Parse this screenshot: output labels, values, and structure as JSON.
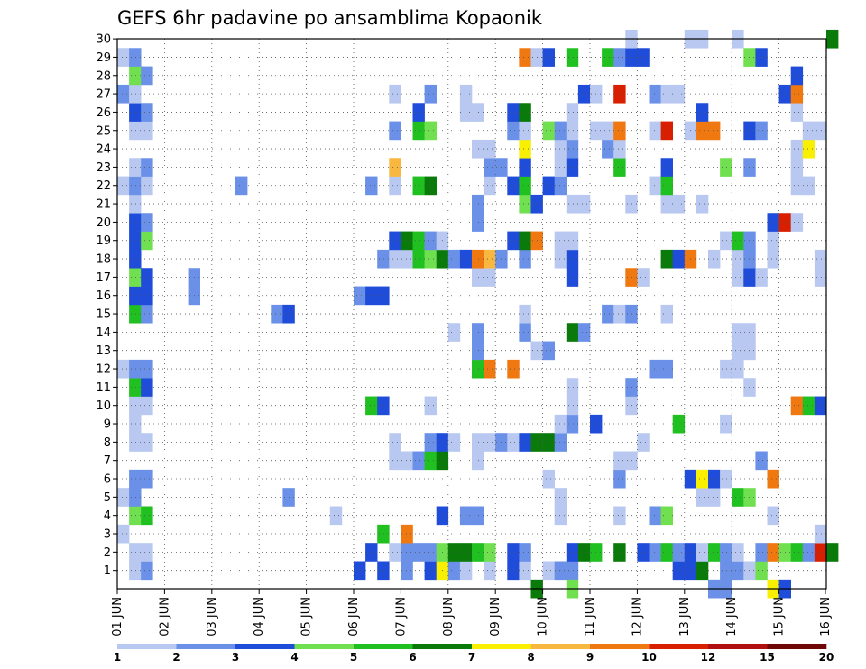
{
  "chart_data": {
    "type": "heatmap",
    "title": "GEFS 6hr padavine po ansamblima Kopaonik",
    "xlabel": "",
    "ylabel": "",
    "x_tick_labels": [
      "01 JUN",
      "02 JUN",
      "03 JUN",
      "04 JUN",
      "05 JUN",
      "06 JUN",
      "07 JUN",
      "08 JUN",
      "09 JUN",
      "10 JUN",
      "11 JUN",
      "12 JUN",
      "13 JUN",
      "14 JUN",
      "15 JUN",
      "16 JUN"
    ],
    "y_tick_labels": [
      "1",
      "2",
      "3",
      "4",
      "5",
      "6",
      "7",
      "8",
      "9",
      "10",
      "11",
      "12",
      "13",
      "14",
      "15",
      "16",
      "17",
      "18",
      "19",
      "20",
      "21",
      "22",
      "23",
      "24",
      "25",
      "26",
      "27",
      "28",
      "29",
      "30"
    ],
    "x_range_steps": [
      0,
      60
    ],
    "y_range_members": [
      0,
      30
    ],
    "grid": "dotted",
    "legend": "bottom colorbar",
    "colorbar": {
      "labels": [
        "1",
        "2",
        "3",
        "4",
        "5",
        "6",
        "7",
        "8",
        "9",
        "10",
        "12",
        "15",
        "20"
      ],
      "colors": [
        "#b8c8f0",
        "#6a90e8",
        "#1f4cd8",
        "#70e050",
        "#20c020",
        "#0a7a0a",
        "#f8f000",
        "#f8b840",
        "#f07810",
        "#d82000",
        "#b01010",
        "#700808"
      ]
    },
    "cells": [
      [
        1,
        1,
        1
      ],
      [
        1,
        2,
        2
      ],
      [
        1,
        20,
        3
      ],
      [
        1,
        22,
        3
      ],
      [
        1,
        24,
        2
      ],
      [
        1,
        26,
        3
      ],
      [
        1,
        27,
        7
      ],
      [
        1,
        28,
        2
      ],
      [
        1,
        29,
        1
      ],
      [
        1,
        31,
        1
      ],
      [
        1,
        33,
        3
      ],
      [
        1,
        34,
        1
      ],
      [
        1,
        36,
        1
      ],
      [
        1,
        37,
        2
      ],
      [
        1,
        38,
        2
      ],
      [
        1,
        47,
        3
      ],
      [
        1,
        48,
        3
      ],
      [
        1,
        49,
        6
      ],
      [
        1,
        51,
        2
      ],
      [
        1,
        52,
        2
      ],
      [
        1,
        53,
        1
      ],
      [
        1,
        54,
        4
      ],
      [
        2,
        1,
        1
      ],
      [
        2,
        2,
        1
      ],
      [
        2,
        21,
        3
      ],
      [
        2,
        23,
        1
      ],
      [
        2,
        24,
        2
      ],
      [
        2,
        25,
        2
      ],
      [
        2,
        26,
        2
      ],
      [
        2,
        27,
        4
      ],
      [
        2,
        28,
        6
      ],
      [
        2,
        29,
        6
      ],
      [
        2,
        30,
        5
      ],
      [
        2,
        31,
        4
      ],
      [
        2,
        33,
        3
      ],
      [
        2,
        34,
        2
      ],
      [
        2,
        38,
        3
      ],
      [
        2,
        39,
        6
      ],
      [
        2,
        40,
        5
      ],
      [
        2,
        42,
        6
      ],
      [
        2,
        44,
        3
      ],
      [
        2,
        45,
        2
      ],
      [
        2,
        46,
        5
      ],
      [
        2,
        47,
        2
      ],
      [
        2,
        48,
        3
      ],
      [
        2,
        49,
        1
      ],
      [
        2,
        50,
        5
      ],
      [
        2,
        51,
        2
      ],
      [
        2,
        52,
        1
      ],
      [
        2,
        54,
        2
      ],
      [
        2,
        55,
        9
      ],
      [
        2,
        56,
        4
      ],
      [
        2,
        57,
        5
      ],
      [
        2,
        58,
        2
      ],
      [
        2,
        59,
        10
      ],
      [
        2,
        60,
        6
      ],
      [
        3,
        0,
        1
      ],
      [
        3,
        22,
        5
      ],
      [
        3,
        24,
        9
      ],
      [
        3,
        59,
        1
      ],
      [
        4,
        1,
        4
      ],
      [
        4,
        2,
        5
      ],
      [
        4,
        18,
        1
      ],
      [
        4,
        27,
        3
      ],
      [
        4,
        29,
        2
      ],
      [
        4,
        30,
        2
      ],
      [
        4,
        37,
        1
      ],
      [
        4,
        42,
        1
      ],
      [
        4,
        45,
        2
      ],
      [
        4,
        46,
        4
      ],
      [
        4,
        55,
        1
      ],
      [
        5,
        0,
        1
      ],
      [
        5,
        1,
        2
      ],
      [
        5,
        14,
        2
      ],
      [
        5,
        37,
        1
      ],
      [
        5,
        49,
        1
      ],
      [
        5,
        50,
        1
      ],
      [
        5,
        52,
        5
      ],
      [
        5,
        53,
        4
      ],
      [
        6,
        1,
        2
      ],
      [
        6,
        2,
        2
      ],
      [
        6,
        36,
        1
      ],
      [
        6,
        42,
        2
      ],
      [
        6,
        48,
        3
      ],
      [
        6,
        49,
        7
      ],
      [
        6,
        50,
        3
      ],
      [
        6,
        51,
        1
      ],
      [
        6,
        55,
        9
      ],
      [
        7,
        23,
        1
      ],
      [
        7,
        24,
        1
      ],
      [
        7,
        25,
        2
      ],
      [
        7,
        26,
        5
      ],
      [
        7,
        27,
        6
      ],
      [
        7,
        30,
        1
      ],
      [
        7,
        42,
        1
      ],
      [
        7,
        43,
        1
      ],
      [
        7,
        54,
        2
      ],
      [
        8,
        1,
        1
      ],
      [
        8,
        2,
        1
      ],
      [
        8,
        23,
        1
      ],
      [
        8,
        26,
        2
      ],
      [
        8,
        27,
        3
      ],
      [
        8,
        28,
        1
      ],
      [
        8,
        30,
        1
      ],
      [
        8,
        31,
        1
      ],
      [
        8,
        32,
        2
      ],
      [
        8,
        33,
        1
      ],
      [
        8,
        34,
        3
      ],
      [
        8,
        35,
        6
      ],
      [
        8,
        36,
        6
      ],
      [
        8,
        37,
        2
      ],
      [
        8,
        44,
        1
      ],
      [
        9,
        1,
        1
      ],
      [
        9,
        37,
        1
      ],
      [
        9,
        38,
        2
      ],
      [
        9,
        40,
        3
      ],
      [
        9,
        47,
        5
      ],
      [
        9,
        51,
        1
      ],
      [
        10,
        1,
        1
      ],
      [
        10,
        2,
        1
      ],
      [
        10,
        21,
        5
      ],
      [
        10,
        22,
        3
      ],
      [
        10,
        26,
        1
      ],
      [
        10,
        38,
        1
      ],
      [
        10,
        43,
        1
      ],
      [
        10,
        57,
        9
      ],
      [
        10,
        58,
        5
      ],
      [
        10,
        59,
        3
      ],
      [
        11,
        1,
        5
      ],
      [
        11,
        2,
        3
      ],
      [
        11,
        38,
        1
      ],
      [
        11,
        43,
        2
      ],
      [
        11,
        53,
        1
      ],
      [
        12,
        0,
        1
      ],
      [
        12,
        1,
        2
      ],
      [
        12,
        2,
        2
      ],
      [
        12,
        30,
        5
      ],
      [
        12,
        31,
        9
      ],
      [
        12,
        33,
        9
      ],
      [
        12,
        45,
        2
      ],
      [
        12,
        46,
        2
      ],
      [
        12,
        51,
        1
      ],
      [
        12,
        52,
        1
      ],
      [
        13,
        30,
        2
      ],
      [
        13,
        35,
        1
      ],
      [
        13,
        36,
        2
      ],
      [
        13,
        52,
        1
      ],
      [
        13,
        53,
        1
      ],
      [
        14,
        28,
        1
      ],
      [
        14,
        30,
        2
      ],
      [
        14,
        34,
        2
      ],
      [
        14,
        38,
        6
      ],
      [
        14,
        39,
        2
      ],
      [
        14,
        52,
        1
      ],
      [
        14,
        53,
        1
      ],
      [
        15,
        1,
        5
      ],
      [
        15,
        2,
        2
      ],
      [
        15,
        13,
        2
      ],
      [
        15,
        14,
        3
      ],
      [
        15,
        34,
        1
      ],
      [
        15,
        41,
        2
      ],
      [
        15,
        42,
        1
      ],
      [
        15,
        43,
        2
      ],
      [
        15,
        46,
        1
      ],
      [
        16,
        1,
        3
      ],
      [
        16,
        2,
        3
      ],
      [
        16,
        6,
        2
      ],
      [
        16,
        20,
        2
      ],
      [
        16,
        21,
        3
      ],
      [
        16,
        22,
        3
      ],
      [
        17,
        1,
        4
      ],
      [
        17,
        2,
        3
      ],
      [
        17,
        6,
        2
      ],
      [
        17,
        30,
        1
      ],
      [
        17,
        31,
        1
      ],
      [
        17,
        38,
        3
      ],
      [
        17,
        43,
        9
      ],
      [
        17,
        44,
        1
      ],
      [
        17,
        52,
        1
      ],
      [
        17,
        53,
        3
      ],
      [
        17,
        54,
        1
      ],
      [
        17,
        59,
        1
      ],
      [
        18,
        1,
        3
      ],
      [
        18,
        22,
        2
      ],
      [
        18,
        23,
        1
      ],
      [
        18,
        24,
        1
      ],
      [
        18,
        25,
        5
      ],
      [
        18,
        26,
        4
      ],
      [
        18,
        27,
        6
      ],
      [
        18,
        28,
        2
      ],
      [
        18,
        29,
        3
      ],
      [
        18,
        30,
        9
      ],
      [
        18,
        31,
        8
      ],
      [
        18,
        32,
        2
      ],
      [
        18,
        34,
        2
      ],
      [
        18,
        37,
        1
      ],
      [
        18,
        38,
        3
      ],
      [
        18,
        46,
        6
      ],
      [
        18,
        47,
        3
      ],
      [
        18,
        48,
        9
      ],
      [
        18,
        50,
        1
      ],
      [
        18,
        52,
        1
      ],
      [
        18,
        53,
        2
      ],
      [
        18,
        55,
        1
      ],
      [
        18,
        59,
        1
      ],
      [
        19,
        1,
        3
      ],
      [
        19,
        2,
        4
      ],
      [
        19,
        23,
        3
      ],
      [
        19,
        24,
        6
      ],
      [
        19,
        25,
        5
      ],
      [
        19,
        26,
        2
      ],
      [
        19,
        27,
        1
      ],
      [
        19,
        33,
        3
      ],
      [
        19,
        34,
        6
      ],
      [
        19,
        35,
        9
      ],
      [
        19,
        37,
        1
      ],
      [
        19,
        38,
        1
      ],
      [
        19,
        51,
        1
      ],
      [
        19,
        52,
        5
      ],
      [
        19,
        53,
        2
      ],
      [
        19,
        55,
        1
      ],
      [
        20,
        1,
        3
      ],
      [
        20,
        2,
        2
      ],
      [
        20,
        30,
        2
      ],
      [
        20,
        55,
        3
      ],
      [
        20,
        56,
        10
      ],
      [
        20,
        57,
        1
      ],
      [
        21,
        1,
        1
      ],
      [
        21,
        30,
        2
      ],
      [
        21,
        34,
        4
      ],
      [
        21,
        35,
        3
      ],
      [
        21,
        38,
        1
      ],
      [
        21,
        39,
        1
      ],
      [
        21,
        43,
        1
      ],
      [
        21,
        46,
        1
      ],
      [
        21,
        47,
        1
      ],
      [
        21,
        49,
        1
      ],
      [
        22,
        0,
        1
      ],
      [
        22,
        1,
        2
      ],
      [
        22,
        2,
        1
      ],
      [
        22,
        10,
        2
      ],
      [
        22,
        21,
        2
      ],
      [
        22,
        23,
        1
      ],
      [
        22,
        25,
        5
      ],
      [
        22,
        26,
        6
      ],
      [
        22,
        31,
        1
      ],
      [
        22,
        33,
        3
      ],
      [
        22,
        34,
        5
      ],
      [
        22,
        36,
        3
      ],
      [
        22,
        37,
        2
      ],
      [
        22,
        45,
        1
      ],
      [
        22,
        46,
        5
      ],
      [
        22,
        57,
        1
      ],
      [
        22,
        58,
        1
      ],
      [
        23,
        1,
        1
      ],
      [
        23,
        2,
        2
      ],
      [
        23,
        23,
        8
      ],
      [
        23,
        31,
        2
      ],
      [
        23,
        32,
        2
      ],
      [
        23,
        34,
        3
      ],
      [
        23,
        37,
        1
      ],
      [
        23,
        38,
        3
      ],
      [
        23,
        42,
        5
      ],
      [
        23,
        46,
        3
      ],
      [
        23,
        51,
        4
      ],
      [
        23,
        53,
        2
      ],
      [
        23,
        57,
        1
      ],
      [
        24,
        30,
        1
      ],
      [
        24,
        31,
        1
      ],
      [
        24,
        34,
        7
      ],
      [
        24,
        37,
        1
      ],
      [
        24,
        38,
        2
      ],
      [
        24,
        41,
        2
      ],
      [
        24,
        42,
        1
      ],
      [
        24,
        57,
        1
      ],
      [
        24,
        58,
        7
      ],
      [
        25,
        1,
        1
      ],
      [
        25,
        2,
        1
      ],
      [
        25,
        23,
        2
      ],
      [
        25,
        25,
        5
      ],
      [
        25,
        26,
        4
      ],
      [
        25,
        33,
        2
      ],
      [
        25,
        34,
        1
      ],
      [
        25,
        36,
        4
      ],
      [
        25,
        37,
        2
      ],
      [
        25,
        38,
        1
      ],
      [
        25,
        40,
        1
      ],
      [
        25,
        41,
        1
      ],
      [
        25,
        42,
        9
      ],
      [
        25,
        45,
        1
      ],
      [
        25,
        46,
        10
      ],
      [
        25,
        48,
        1
      ],
      [
        25,
        49,
        9
      ],
      [
        25,
        50,
        9
      ],
      [
        25,
        53,
        3
      ],
      [
        25,
        54,
        2
      ],
      [
        25,
        58,
        1
      ],
      [
        25,
        59,
        1
      ],
      [
        26,
        1,
        3
      ],
      [
        26,
        2,
        2
      ],
      [
        26,
        25,
        3
      ],
      [
        26,
        29,
        1
      ],
      [
        26,
        30,
        1
      ],
      [
        26,
        33,
        3
      ],
      [
        26,
        34,
        6
      ],
      [
        26,
        38,
        1
      ],
      [
        26,
        49,
        3
      ],
      [
        26,
        57,
        1
      ],
      [
        27,
        0,
        2
      ],
      [
        27,
        1,
        1
      ],
      [
        27,
        23,
        1
      ],
      [
        27,
        26,
        2
      ],
      [
        27,
        29,
        1
      ],
      [
        27,
        39,
        3
      ],
      [
        27,
        40,
        1
      ],
      [
        27,
        42,
        10
      ],
      [
        27,
        45,
        2
      ],
      [
        27,
        46,
        1
      ],
      [
        27,
        47,
        1
      ],
      [
        27,
        56,
        3
      ],
      [
        27,
        57,
        9
      ],
      [
        28,
        1,
        4
      ],
      [
        28,
        2,
        2
      ],
      [
        28,
        57,
        3
      ],
      [
        29,
        0,
        1
      ],
      [
        29,
        1,
        2
      ],
      [
        29,
        34,
        9
      ],
      [
        29,
        35,
        1
      ],
      [
        29,
        36,
        3
      ],
      [
        29,
        38,
        5
      ],
      [
        29,
        41,
        5
      ],
      [
        29,
        42,
        2
      ],
      [
        29,
        43,
        3
      ],
      [
        29,
        44,
        3
      ],
      [
        29,
        53,
        4
      ],
      [
        29,
        54,
        3
      ],
      [
        30,
        43,
        1
      ],
      [
        30,
        48,
        1
      ],
      [
        30,
        49,
        1
      ],
      [
        30,
        52,
        1
      ],
      [
        30,
        60,
        6
      ],
      [
        0,
        35,
        6
      ],
      [
        0,
        38,
        4
      ],
      [
        0,
        50,
        2
      ],
      [
        0,
        51,
        2
      ],
      [
        0,
        55,
        7
      ],
      [
        0,
        56,
        3
      ]
    ]
  }
}
